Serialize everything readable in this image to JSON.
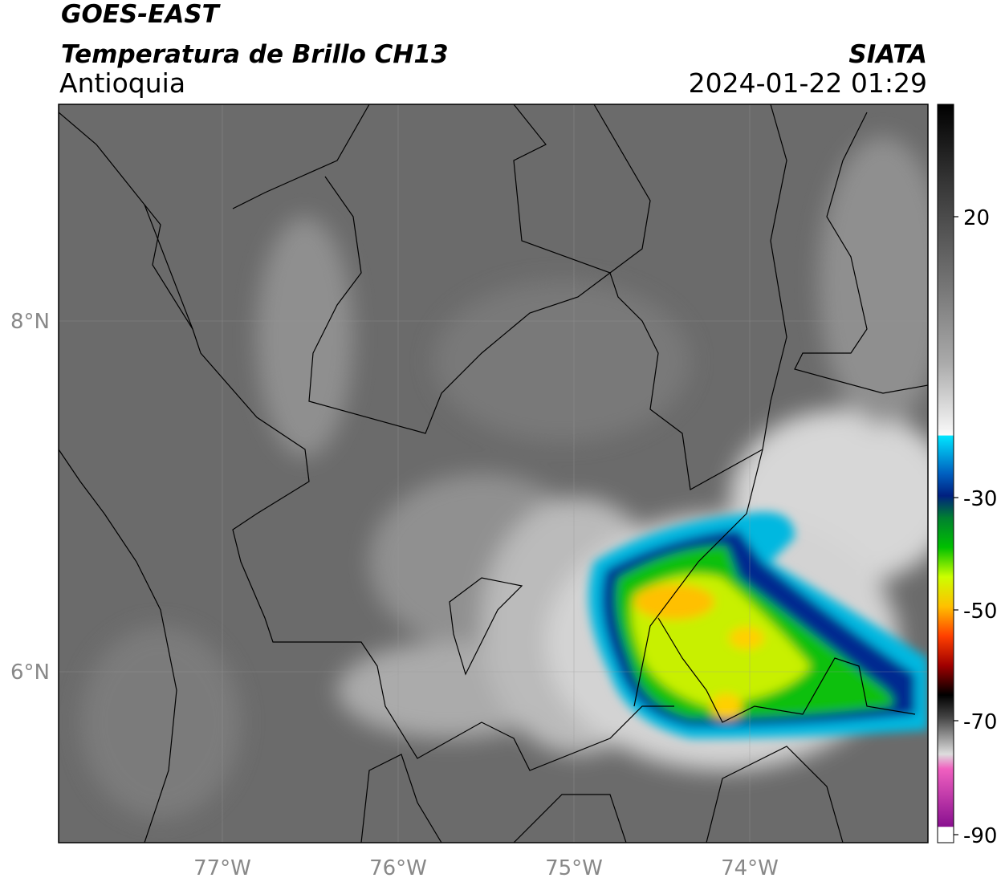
{
  "header": {
    "title": "GOES-EAST",
    "subtitle": "Temperatura de Brillo CH13",
    "region": "Antioquia",
    "source": "SIATA",
    "datetime": "2024-01-22 01:29"
  },
  "map": {
    "lon_labels": [
      "77°W",
      "76°W",
      "75°W",
      "74°W"
    ],
    "lat_labels": [
      "8°N",
      "6°N"
    ]
  },
  "colorbar": {
    "tick_labels": [
      "20",
      "-30",
      "-50",
      "-70",
      "-90"
    ]
  }
}
